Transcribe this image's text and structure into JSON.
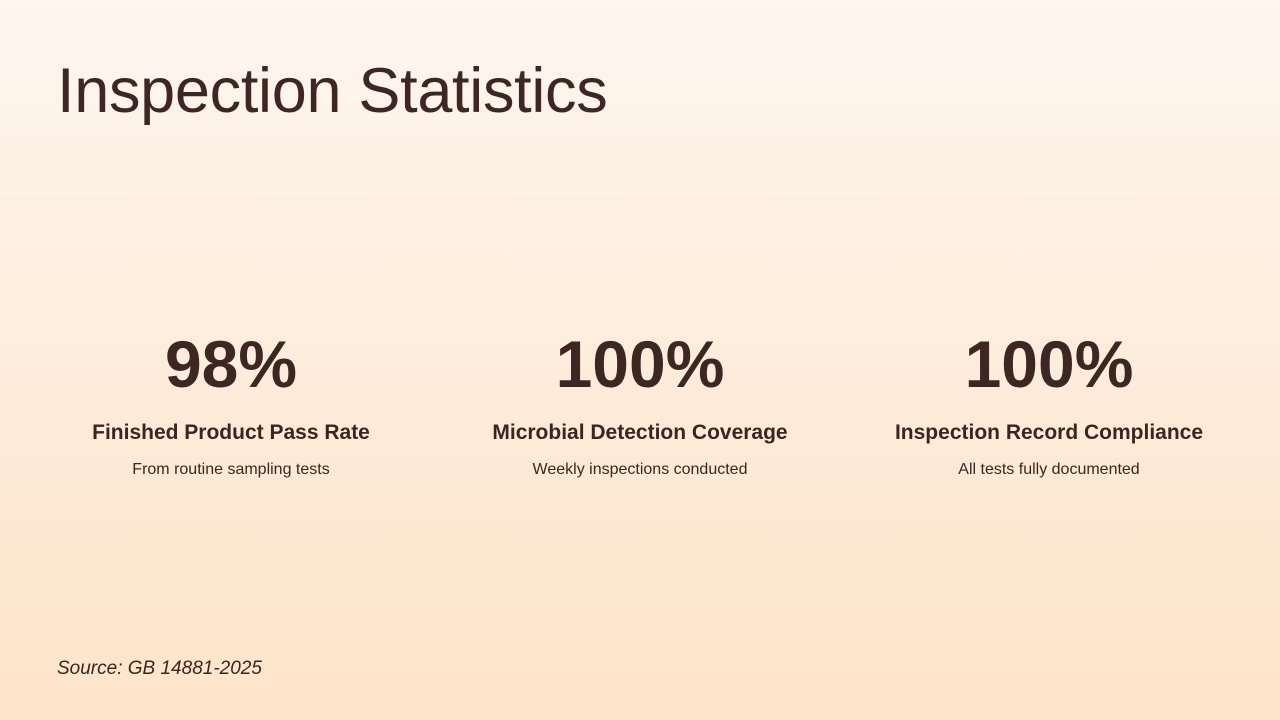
{
  "slide": {
    "title": "Inspection Statistics",
    "source": "Source: GB 14881-2025"
  },
  "stats": [
    {
      "value": "98%",
      "label": "Finished Product Pass Rate",
      "description": "From routine sampling tests"
    },
    {
      "value": "100%",
      "label": "Microbial Detection Coverage",
      "description": "Weekly inspections conducted"
    },
    {
      "value": "100%",
      "label": "Inspection Record Compliance",
      "description": "All tests fully documented"
    }
  ],
  "colors": {
    "text": "#3b2520",
    "background_top": "#fef6ef",
    "background_bottom": "#fee4c9"
  }
}
